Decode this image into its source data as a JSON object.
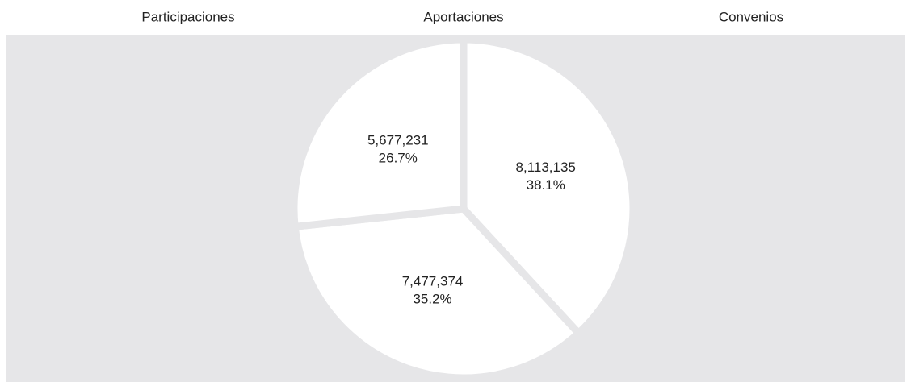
{
  "chart_data": {
    "type": "pie",
    "categories": [
      "Participaciones",
      "Aportaciones",
      "Convenios"
    ],
    "values": [
      8113135,
      7477374,
      5677231
    ],
    "value_labels": [
      "8,113,135",
      "7,477,374",
      "5,677,231"
    ],
    "percentages": [
      38.1,
      35.2,
      26.7
    ],
    "percentage_labels": [
      "38.1%",
      "35.2%",
      "26.7%"
    ],
    "color": "#ffffff",
    "background": "#e6e6e8",
    "legend": "top"
  }
}
